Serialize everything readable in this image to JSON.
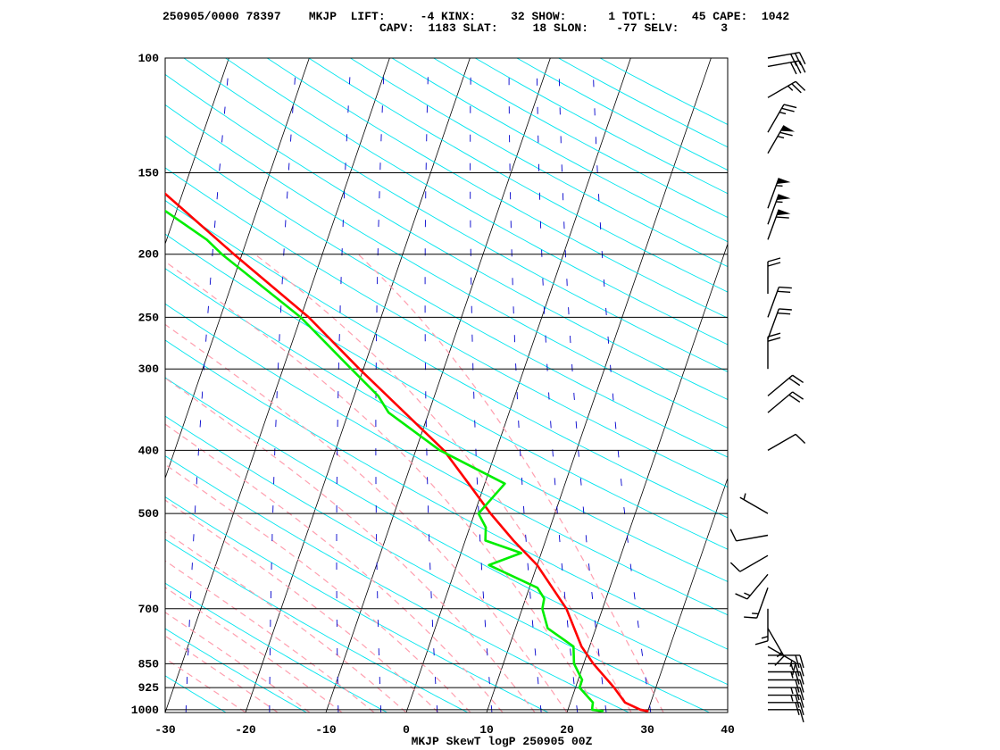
{
  "header": {
    "line1": "250905/0000 78397    MKJP  LIFT:     -4 KINX:     32 SHOW:      1 TOTL:     45 CAPE:  1042",
    "line2": "CAPV:  1183 SLAT:     18 SLON:    -77 SELV:      3"
  },
  "colors": {
    "temperature": "#ff0000",
    "dewpoint": "#00ee00",
    "isotherm": "#000000",
    "dry_adiabat": "#00e5ee",
    "moist_adiabat": "#ff9faf",
    "mixing_ratio": "#0000cc",
    "isobar": "#000000",
    "wind_barb": "#000000"
  },
  "chart_data": {
    "type": "line",
    "subtype": "skew-T log-P sounding",
    "title": "MKJP SkewT logP 250905 00Z",
    "station": "MKJP",
    "station_id": "78397",
    "date": "250905/0000",
    "indices": {
      "LIFT": -4,
      "KINX": 32,
      "SHOW": 1,
      "TOTL": 45,
      "CAPE": 1042,
      "CAPV": 1183,
      "SLAT": 18,
      "SLON": -77,
      "SELV": 3
    },
    "x_ticks": [
      -30,
      -20,
      -10,
      0,
      10,
      20,
      30,
      40
    ],
    "x_tick_labels": [
      "-30",
      "-20",
      "-10",
      "0",
      "10",
      "20",
      "30",
      "40"
    ],
    "xlim": [
      -30,
      40
    ],
    "y_ticks": [
      100,
      150,
      200,
      250,
      300,
      400,
      500,
      700,
      850,
      925,
      1000
    ],
    "y_tick_labels": [
      "100",
      "150",
      "200",
      "250",
      "300",
      "400",
      "500",
      "700",
      "850",
      "925",
      "1000"
    ],
    "ylim": [
      1010,
      100
    ],
    "y_scale": "log",
    "series": [
      {
        "key": "temperature",
        "values": [
          [
            1006,
            30.1
          ],
          [
            1000,
            29.0
          ],
          [
            975,
            26.8
          ],
          [
            925,
            24.8
          ],
          [
            850,
            21.2
          ],
          [
            800,
            19.0
          ],
          [
            700,
            15.5
          ],
          [
            600,
            10.0
          ],
          [
            550,
            6.0
          ],
          [
            500,
            2.0
          ],
          [
            450,
            -2.0
          ],
          [
            400,
            -6.5
          ],
          [
            350,
            -13.0
          ],
          [
            300,
            -20.5
          ],
          [
            250,
            -29.0
          ],
          [
            200,
            -41.0
          ],
          [
            150,
            -56.0
          ],
          [
            125,
            -65.0
          ],
          [
            115,
            -68.5
          ],
          [
            110,
            -68.0
          ],
          [
            105,
            -67.5
          ],
          [
            100,
            -64.0
          ]
        ]
      },
      {
        "key": "dewpoint",
        "values": [
          [
            1006,
            24.5
          ],
          [
            1000,
            23.0
          ],
          [
            975,
            22.8
          ],
          [
            925,
            20.5
          ],
          [
            900,
            20.5
          ],
          [
            850,
            18.8
          ],
          [
            800,
            18.0
          ],
          [
            750,
            14.0
          ],
          [
            700,
            12.5
          ],
          [
            675,
            12.3
          ],
          [
            650,
            11.0
          ],
          [
            600,
            4.0
          ],
          [
            575,
            7.5
          ],
          [
            550,
            2.5
          ],
          [
            525,
            2.0
          ],
          [
            500,
            0.5
          ],
          [
            450,
            2.5
          ],
          [
            400,
            -7.0
          ],
          [
            350,
            -15.0
          ],
          [
            330,
            -17.0
          ],
          [
            300,
            -21.5
          ],
          [
            250,
            -30.0
          ],
          [
            200,
            -42.5
          ],
          [
            190,
            -45.0
          ],
          [
            170,
            -52.0
          ],
          [
            160,
            -56.0
          ],
          [
            150,
            -58.0
          ],
          [
            125,
            -65.0
          ],
          [
            115,
            -68.0
          ],
          [
            110,
            -67.5
          ],
          [
            105,
            -67.0
          ],
          [
            100,
            -66.5
          ]
        ]
      }
    ],
    "wind_barbs": [
      {
        "p": 1000,
        "dir": 90,
        "spd": 10
      },
      {
        "p": 975,
        "dir": 90,
        "spd": 20
      },
      {
        "p": 950,
        "dir": 90,
        "spd": 25
      },
      {
        "p": 925,
        "dir": 90,
        "spd": 25
      },
      {
        "p": 900,
        "dir": 90,
        "spd": 20
      },
      {
        "p": 875,
        "dir": 90,
        "spd": 25
      },
      {
        "p": 850,
        "dir": 90,
        "spd": 25
      },
      {
        "p": 825,
        "dir": 90,
        "spd": 20
      },
      {
        "p": 800,
        "dir": 120,
        "spd": 15
      },
      {
        "p": 750,
        "dir": 150,
        "spd": 15
      },
      {
        "p": 700,
        "dir": 180,
        "spd": 15
      },
      {
        "p": 650,
        "dir": 200,
        "spd": 15
      },
      {
        "p": 620,
        "dir": 220,
        "spd": 15
      },
      {
        "p": 580,
        "dir": 240,
        "spd": 10
      },
      {
        "p": 540,
        "dir": 260,
        "spd": 10
      },
      {
        "p": 500,
        "dir": 300,
        "spd": 5
      },
      {
        "p": 400,
        "dir": 60,
        "spd": 10
      },
      {
        "p": 350,
        "dir": 50,
        "spd": 20
      },
      {
        "p": 330,
        "dir": 50,
        "spd": 20
      },
      {
        "p": 300,
        "dir": 0,
        "spd": 20
      },
      {
        "p": 270,
        "dir": 20,
        "spd": 20
      },
      {
        "p": 250,
        "dir": 20,
        "spd": 20
      },
      {
        "p": 230,
        "dir": 0,
        "spd": 20
      },
      {
        "p": 190,
        "dir": 20,
        "spd": 60
      },
      {
        "p": 180,
        "dir": 20,
        "spd": 55
      },
      {
        "p": 170,
        "dir": 20,
        "spd": 55
      },
      {
        "p": 140,
        "dir": 30,
        "spd": 65
      },
      {
        "p": 130,
        "dir": 30,
        "spd": 25
      },
      {
        "p": 115,
        "dir": 60,
        "spd": 25
      },
      {
        "p": 103,
        "dir": 80,
        "spd": 30
      },
      {
        "p": 100,
        "dir": 80,
        "spd": 30
      }
    ]
  }
}
